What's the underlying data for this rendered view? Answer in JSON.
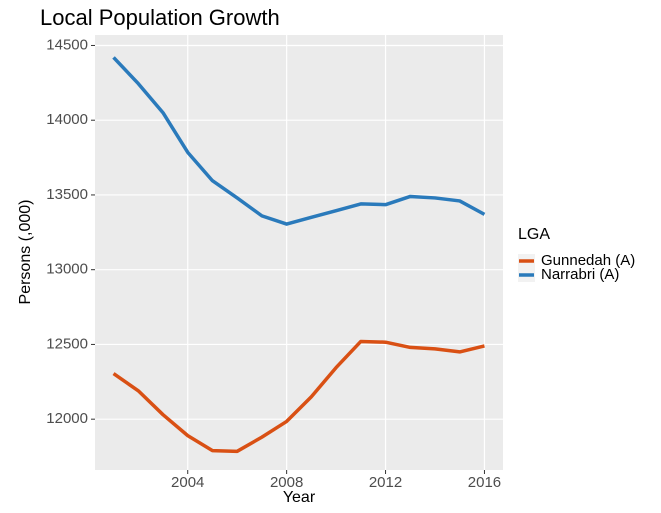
{
  "chart_data": {
    "type": "line",
    "title": "Local Population Growth",
    "x_label": "Year",
    "y_label": "Persons (,000)",
    "legend_title": "LGA",
    "legend_position": "right",
    "x": [
      2001,
      2002,
      2003,
      2004,
      2005,
      2006,
      2007,
      2008,
      2009,
      2010,
      2011,
      2012,
      2013,
      2014,
      2015,
      2016
    ],
    "series": [
      {
        "name": "Gunnedah (A)",
        "color": "#d95014",
        "values": [
          12305,
          12190,
          12030,
          11890,
          11790,
          11785,
          11880,
          11985,
          12150,
          12345,
          12520,
          12515,
          12480,
          12470,
          12450,
          12490
        ]
      },
      {
        "name": "Narrabri (A)",
        "color": "#2a7abb",
        "values": [
          14420,
          14245,
          14050,
          13785,
          13595,
          13480,
          13360,
          13305,
          13350,
          13395,
          13440,
          13435,
          13490,
          13480,
          13460,
          13370
        ]
      }
    ],
    "xlim": [
      2000.25,
      2016.75
    ],
    "xticks": [
      2004,
      2008,
      2012,
      2016
    ],
    "ylim": [
      11660,
      14570
    ],
    "yticks": [
      12000,
      12500,
      13000,
      13500,
      14000,
      14500
    ],
    "grid": true
  }
}
